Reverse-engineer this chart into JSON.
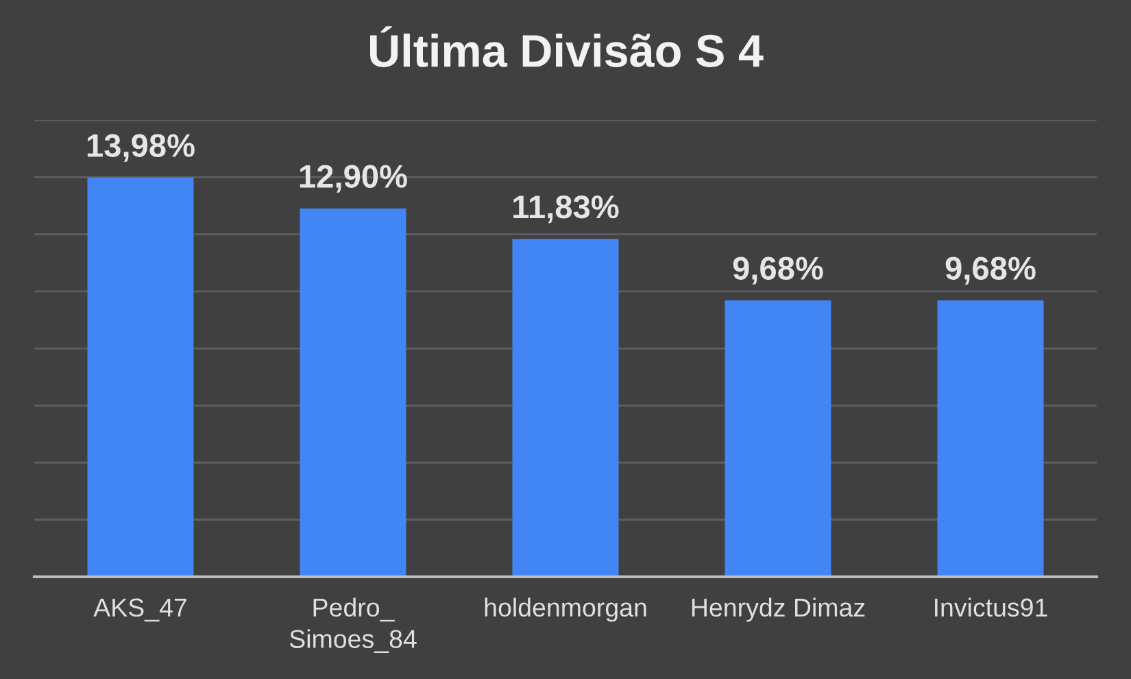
{
  "chart_data": {
    "type": "bar",
    "title": "Última Divisão S 4",
    "categories": [
      "AKS_47",
      "Pedro_\nSimoes_84",
      "holdenmorgan",
      "Henrydz Dimaz",
      "Invictus91"
    ],
    "values": [
      13.98,
      12.9,
      11.83,
      9.68,
      9.68
    ],
    "value_labels": [
      "13,98%",
      "12,90%",
      "11,83%",
      "9,68%",
      "9,68%"
    ],
    "color": "#4285f4",
    "ylim": [
      0,
      16
    ],
    "yticks": [
      {
        "value": 0,
        "label": null
      },
      {
        "value": 2,
        "label": null
      },
      {
        "value": 4,
        "label": null
      },
      {
        "value": 6,
        "label": null
      },
      {
        "value": 8,
        "label": null
      },
      {
        "value": 10,
        "label": null
      },
      {
        "value": 12,
        "label": null
      },
      {
        "value": 14,
        "label": null
      },
      {
        "value": 16,
        "label": null
      }
    ],
    "grid": "y",
    "tick_labels": "x"
  }
}
